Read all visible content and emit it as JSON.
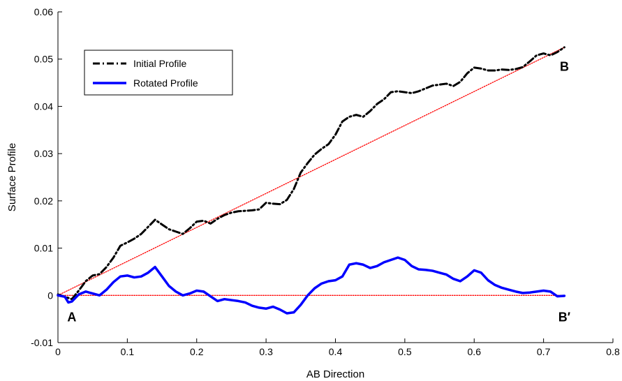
{
  "chart_data": {
    "type": "line",
    "title": "",
    "xlabel": "AB Direction",
    "ylabel": "Surface Profile",
    "xlim": [
      0,
      0.8
    ],
    "ylim": [
      -0.01,
      0.06
    ],
    "xticks": [
      0,
      0.1,
      0.2,
      0.3,
      0.4,
      0.5,
      0.6,
      0.7,
      0.8
    ],
    "xtick_labels": [
      "0",
      "0.1",
      "0.2",
      "0.3",
      "0.4",
      "0.5",
      "0.6",
      "0.7",
      "0.8"
    ],
    "yticks": [
      -0.01,
      0,
      0.01,
      0.02,
      0.03,
      0.04,
      0.05,
      0.06
    ],
    "ytick_labels": [
      "-0.01",
      "0",
      "0.01",
      "0.02",
      "0.03",
      "0.04",
      "0.05",
      "0.06"
    ],
    "grid": false,
    "legend_position": "top-left",
    "series": [
      {
        "name": "Initial Profile",
        "color": "#000000",
        "style": "dash-dot",
        "x": [
          0,
          0.01,
          0.02,
          0.03,
          0.04,
          0.05,
          0.06,
          0.07,
          0.08,
          0.09,
          0.1,
          0.11,
          0.12,
          0.13,
          0.14,
          0.15,
          0.16,
          0.17,
          0.18,
          0.19,
          0.2,
          0.21,
          0.22,
          0.23,
          0.24,
          0.25,
          0.26,
          0.27,
          0.28,
          0.29,
          0.3,
          0.31,
          0.32,
          0.33,
          0.34,
          0.35,
          0.36,
          0.37,
          0.38,
          0.39,
          0.4,
          0.41,
          0.42,
          0.43,
          0.44,
          0.45,
          0.46,
          0.47,
          0.48,
          0.49,
          0.5,
          0.51,
          0.52,
          0.53,
          0.54,
          0.55,
          0.56,
          0.57,
          0.58,
          0.59,
          0.6,
          0.61,
          0.62,
          0.63,
          0.64,
          0.65,
          0.66,
          0.67,
          0.68,
          0.69,
          0.7,
          0.71,
          0.72,
          0.73
        ],
        "y": [
          0.0002,
          -0.0003,
          -0.0008,
          0.001,
          0.003,
          0.0042,
          0.0045,
          0.006,
          0.008,
          0.0105,
          0.0112,
          0.012,
          0.013,
          0.0145,
          0.016,
          0.015,
          0.014,
          0.0135,
          0.013,
          0.0142,
          0.0156,
          0.0158,
          0.0152,
          0.0162,
          0.017,
          0.0175,
          0.0178,
          0.0179,
          0.018,
          0.0182,
          0.0196,
          0.0194,
          0.0193,
          0.0202,
          0.0225,
          0.026,
          0.028,
          0.0298,
          0.031,
          0.032,
          0.034,
          0.0368,
          0.0378,
          0.0382,
          0.0378,
          0.039,
          0.0405,
          0.0415,
          0.043,
          0.0432,
          0.043,
          0.0428,
          0.0432,
          0.0438,
          0.0444,
          0.0446,
          0.0448,
          0.0443,
          0.0452,
          0.047,
          0.0482,
          0.048,
          0.0476,
          0.0476,
          0.0478,
          0.0477,
          0.0479,
          0.0483,
          0.0495,
          0.0508,
          0.0512,
          0.0508,
          0.0515,
          0.0525
        ]
      },
      {
        "name": "Rotated Profile",
        "color": "#0000ff",
        "style": "solid",
        "x": [
          0,
          0.01,
          0.015,
          0.02,
          0.03,
          0.04,
          0.05,
          0.06,
          0.07,
          0.08,
          0.09,
          0.1,
          0.11,
          0.12,
          0.13,
          0.14,
          0.15,
          0.16,
          0.17,
          0.18,
          0.19,
          0.2,
          0.21,
          0.22,
          0.23,
          0.24,
          0.25,
          0.26,
          0.27,
          0.28,
          0.29,
          0.3,
          0.31,
          0.32,
          0.33,
          0.34,
          0.35,
          0.36,
          0.37,
          0.38,
          0.39,
          0.4,
          0.41,
          0.42,
          0.43,
          0.44,
          0.45,
          0.46,
          0.47,
          0.48,
          0.49,
          0.5,
          0.51,
          0.52,
          0.53,
          0.54,
          0.55,
          0.56,
          0.57,
          0.58,
          0.59,
          0.6,
          0.61,
          0.62,
          0.63,
          0.64,
          0.65,
          0.66,
          0.67,
          0.68,
          0.69,
          0.7,
          0.71,
          0.72,
          0.73
        ],
        "y": [
          0,
          -0.0003,
          -0.0015,
          -0.0013,
          0.0002,
          0.0008,
          0.0004,
          0,
          0.0012,
          0.0028,
          0.004,
          0.0042,
          0.0038,
          0.004,
          0.0048,
          0.006,
          0.004,
          0.002,
          0.0008,
          0,
          0.0004,
          0.001,
          0.0008,
          -0.0002,
          -0.0012,
          -0.0008,
          -0.001,
          -0.0012,
          -0.0015,
          -0.0022,
          -0.0026,
          -0.0028,
          -0.0024,
          -0.003,
          -0.0038,
          -0.0036,
          -0.002,
          0,
          0.0015,
          0.0025,
          0.003,
          0.0032,
          0.004,
          0.0065,
          0.0068,
          0.0065,
          0.0058,
          0.0062,
          0.007,
          0.0075,
          0.008,
          0.0075,
          0.0062,
          0.0055,
          0.0054,
          0.0052,
          0.0048,
          0.0044,
          0.0035,
          0.003,
          0.004,
          0.0053,
          0.0048,
          0.0032,
          0.0022,
          0.0016,
          0.0012,
          0.0008,
          0.0005,
          0.0006,
          0.0008,
          0.001,
          0.0008,
          -0.0002,
          -0.0001
        ]
      },
      {
        "name": "",
        "color": "#ff0000",
        "style": "dotted",
        "x": [
          0,
          0.73
        ],
        "y": [
          0,
          0.0525
        ]
      },
      {
        "name": "",
        "color": "#ff0000",
        "style": "dotted",
        "x": [
          0,
          0.73
        ],
        "y": [
          0,
          0
        ]
      }
    ],
    "annotations": [
      {
        "text": "A",
        "x": 0.02,
        "y": -0.0055
      },
      {
        "text": "B",
        "x": 0.73,
        "y": 0.0475
      },
      {
        "text": "B′",
        "x": 0.73,
        "y": -0.0055
      }
    ]
  }
}
